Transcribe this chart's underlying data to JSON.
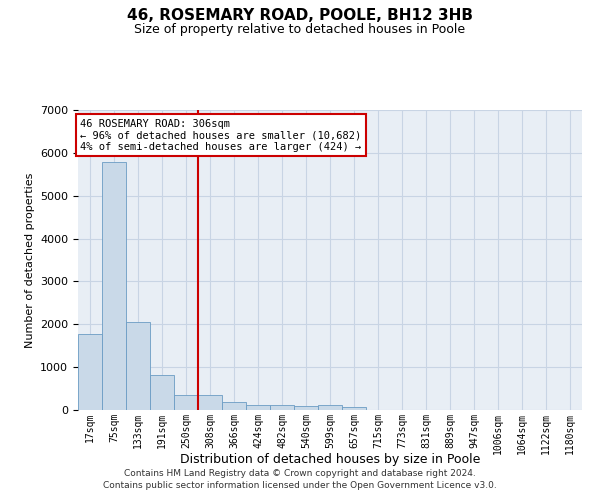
{
  "title": "46, ROSEMARY ROAD, POOLE, BH12 3HB",
  "subtitle": "Size of property relative to detached houses in Poole",
  "xlabel": "Distribution of detached houses by size in Poole",
  "ylabel": "Number of detached properties",
  "bin_labels": [
    "17sqm",
    "75sqm",
    "133sqm",
    "191sqm",
    "250sqm",
    "308sqm",
    "366sqm",
    "424sqm",
    "482sqm",
    "540sqm",
    "599sqm",
    "657sqm",
    "715sqm",
    "773sqm",
    "831sqm",
    "889sqm",
    "947sqm",
    "1006sqm",
    "1064sqm",
    "1122sqm",
    "1180sqm"
  ],
  "bar_values": [
    1780,
    5780,
    2060,
    820,
    350,
    350,
    190,
    120,
    110,
    90,
    110,
    80,
    0,
    0,
    0,
    0,
    0,
    0,
    0,
    0,
    0
  ],
  "bar_color": "#c9d9e8",
  "bar_edge_color": "#6b9cc4",
  "property_line_index": 5,
  "property_label": "46 ROSEMARY ROAD: 306sqm",
  "annotation_line1": "← 96% of detached houses are smaller (10,682)",
  "annotation_line2": "4% of semi-detached houses are larger (424) →",
  "annotation_box_facecolor": "#ffffff",
  "annotation_box_edgecolor": "#cc0000",
  "vline_color": "#cc0000",
  "ylim": [
    0,
    7000
  ],
  "yticks": [
    0,
    1000,
    2000,
    3000,
    4000,
    5000,
    6000,
    7000
  ],
  "grid_color": "#c8d4e4",
  "bg_color": "#e8eef5",
  "footer_line1": "Contains HM Land Registry data © Crown copyright and database right 2024.",
  "footer_line2": "Contains public sector information licensed under the Open Government Licence v3.0."
}
